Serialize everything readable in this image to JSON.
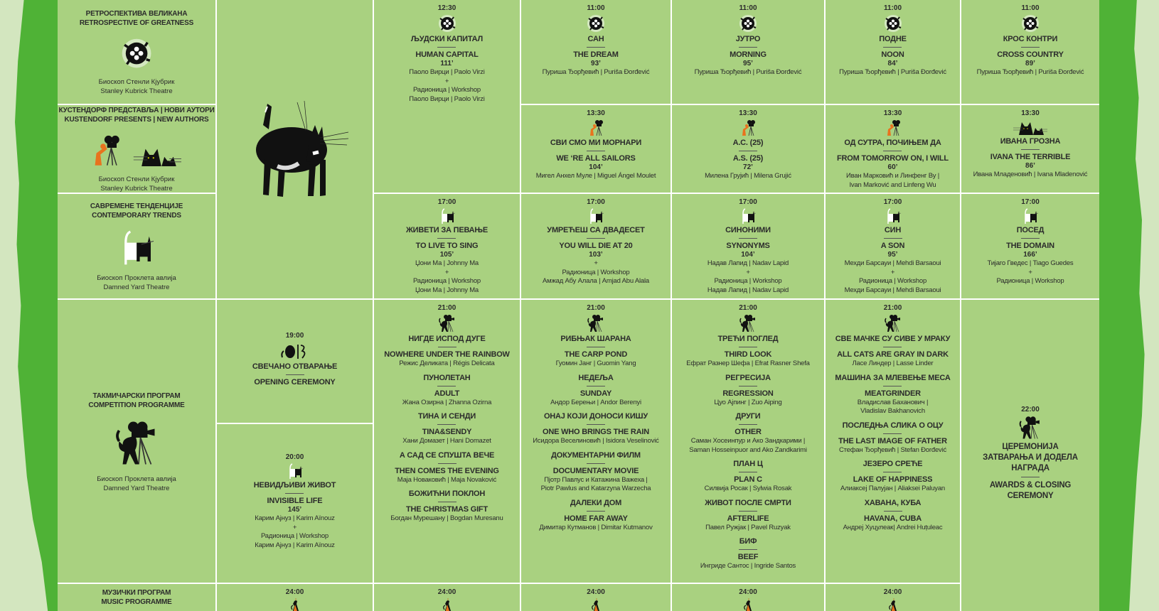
{
  "colors": {
    "cell": "#a9d180",
    "grid_lines": "#ffffff",
    "stripe": "#4fb236",
    "paper": "#d3e6bf",
    "accent_orange": "#e8731e"
  },
  "sections": [
    {
      "id": "retro",
      "title_sr": "РЕТРОСПЕКТИВА ВЕЛИКАНА",
      "title_en": "RETROSPECTIVE OF GREATNESS",
      "icon": "film-reel-icon",
      "venue_sr": "Биоскоп Стенли Кјубрик",
      "venue_en": "Stanley Kubrick Theatre"
    },
    {
      "id": "kustendorf",
      "title_sr": "КУСТЕНДОРФ ПРЕДСТАВЉА | НОВИ АУТОРИ",
      "title_en": "KUSTENDORF PRESENTS | NEW AUTHORS",
      "icon": "cameraman-and-cats-icon",
      "venue_sr": "Биоскоп Стенли Кјубрик",
      "venue_en": "Stanley Kubrick Theatre"
    },
    {
      "id": "contemporary",
      "title_sr": "САВРЕМЕНЕ ТЕНДЕНЦИЈЕ",
      "title_en": "CONTEMPORARY TRENDS",
      "icon": "black-white-cat-icon",
      "venue_sr": "Биоскоп Проклета авлија",
      "venue_en": "Damned Yard Theatre"
    },
    {
      "id": "competition",
      "title_sr": "ТАКМИЧАРСКИ ПРОГРАМ",
      "title_en": "COMPETITION PROGRAMME",
      "icon": "cat-with-camera-icon",
      "venue_sr": "Биоскоп Проклета авлија",
      "venue_en": "Damned Yard Theatre"
    },
    {
      "id": "music",
      "title_sr": "МУЗИЧКИ ПРОГРАМ",
      "title_en": "MUSIC PROGRAMME"
    }
  ],
  "poster_art": {
    "icon": "black-cat-illustration"
  },
  "events": [
    {
      "id": "c3r1",
      "time": "12:30",
      "icon": "film-reel-icon",
      "films": [
        {
          "sr": "ЉУДСКИ КАПИТАЛ",
          "en": "HUMAN CAPITAL",
          "dur": "111’",
          "lines": [
            "Паоло Вирци | Paolo Virzi",
            "+",
            "Радионица | Workshop",
            "Паоло Вирци | Paolo Virzi"
          ]
        }
      ]
    },
    {
      "id": "c4r1",
      "time": "11:00",
      "icon": "film-reel-icon",
      "films": [
        {
          "sr": "САН",
          "en": "THE DREAM",
          "dur": "93’",
          "lines": [
            "Пуриша Ђорђевић | Puriša Đorđević"
          ]
        }
      ]
    },
    {
      "id": "c5r1",
      "time": "11:00",
      "icon": "film-reel-icon",
      "films": [
        {
          "sr": "ЈУТРО",
          "en": "MORNING",
          "dur": "95’",
          "lines": [
            "Пуриша Ђорђевић | Puriša Đorđević"
          ]
        }
      ]
    },
    {
      "id": "c6r1",
      "time": "11:00",
      "icon": "film-reel-icon",
      "films": [
        {
          "sr": "ПОДНЕ",
          "en": "NOON",
          "dur": "84’",
          "lines": [
            "Пуриша Ђорђевић | Puriša Đorđević"
          ]
        }
      ]
    },
    {
      "id": "c7r1",
      "time": "11:00",
      "icon": "film-reel-icon",
      "films": [
        {
          "sr": "КРОС КОНТРИ",
          "en": "CROSS COUNTRY",
          "dur": "89’",
          "lines": [
            "Пуриша Ђорђевић | Puriša Đorđević"
          ]
        }
      ]
    },
    {
      "id": "c4r2",
      "time": "13:30",
      "icon": "cameraman-icon",
      "films": [
        {
          "sr": "СВИ СМО МИ МОРНАРИ",
          "en": "WE ‘RE ALL SAILORS",
          "dur": "104’",
          "lines": [
            "Мигел Анхел Муле | Miguel Ángel Moulet"
          ]
        }
      ]
    },
    {
      "id": "c5r2",
      "time": "13:30",
      "icon": "cameraman-icon",
      "films": [
        {
          "sr": "А.С. (25)",
          "en": "A.S. (25)",
          "dur": "72’",
          "lines": [
            "Милена Грујић | Milena Grujić"
          ]
        }
      ]
    },
    {
      "id": "c6r2",
      "time": "13:30",
      "icon": "cameraman-icon",
      "films": [
        {
          "sr": "ОД СУТРА, ПОЧИЊЕМ ДА",
          "en": "FROM TOMORROW ON, I WILL",
          "dur": "60’",
          "lines": [
            "Иван Марковић и Линфенг Ву |",
            "Ivan Marković and Linfeng Wu"
          ]
        }
      ]
    },
    {
      "id": "c7r2",
      "time": "13:30",
      "icon": "two-black-cats-icon",
      "films": [
        {
          "sr": "ИВАНА ГРОЗНА",
          "en": "IVANA THE TERRIBLE",
          "dur": "86’",
          "lines": [
            "Ивана Младеновић | Ivana Mladenović"
          ]
        }
      ]
    },
    {
      "id": "c3r3",
      "time": "17:00",
      "icon": "black-white-cat-icon",
      "films": [
        {
          "sr": "ЖИВЕТИ ЗА ПЕВАЊЕ",
          "en": "TO LIVE TO SING",
          "dur": "105’",
          "lines": [
            "Џони Ма | Johnny Ma",
            "+",
            "Радионица | Workshop",
            "Џони Ма | Johnny Ma"
          ]
        }
      ]
    },
    {
      "id": "c4r3",
      "time": "17:00",
      "icon": "black-white-cat-icon",
      "films": [
        {
          "sr": "УМРЕЋЕШ СА ДВАДЕСЕТ",
          "en": "YOU WILL DIE AT 20",
          "dur": "103’",
          "lines": [
            "+",
            "Радионица | Workshop",
            "Амжад Абу Алала | Amjad Abu Alala"
          ]
        }
      ]
    },
    {
      "id": "c5r3",
      "time": "17:00",
      "icon": "black-white-cat-icon",
      "films": [
        {
          "sr": "СИНОНИМИ",
          "en": "SYNONYMS",
          "dur": "104’",
          "lines": [
            "Надав Лапид | Nadav Lapid",
            "+",
            "Радионица | Workshop",
            "Надав Лапид | Nadav Lapid"
          ]
        }
      ]
    },
    {
      "id": "c6r3",
      "time": "17:00",
      "icon": "black-white-cat-icon",
      "films": [
        {
          "sr": "СИН",
          "en": "A SON",
          "dur": "95’",
          "lines": [
            "Мехди Барсауи | Mehdi Barsaoui",
            "+",
            "Радионица | Workshop",
            "Мехди Барсауи | Mehdi Barsaoui"
          ]
        }
      ]
    },
    {
      "id": "c7r3",
      "time": "17:00",
      "icon": "black-white-cat-icon",
      "films": [
        {
          "sr": "ПОСЕД",
          "en": "THE DOMAIN",
          "dur": "166’",
          "lines": [
            "Тијаго Гведес | Tiago Guedes",
            "+",
            "Радионица | Workshop"
          ]
        }
      ]
    },
    {
      "id": "c2open",
      "time": "19:00",
      "icon": "festival-logo-icon",
      "films": [
        {
          "sr": "СВЕЧАНО ОТВАРАЊЕ",
          "en": "OPENING CEREMONY",
          "lines": []
        }
      ]
    },
    {
      "id": "c2inv",
      "time": "20:00",
      "icon": "black-white-cat-icon",
      "films": [
        {
          "sr": "НЕВИДЉИВИ ЖИВОТ",
          "en": "INVISIBLE LIFE",
          "dur": "145’",
          "lines": [
            "Карим Ајнуз | Karim Aïnouz",
            "+",
            "Радионица | Workshop",
            "Карим Ајнуз | Karim Aïnouz"
          ]
        }
      ]
    },
    {
      "id": "c3r4",
      "time": "21:00",
      "icon": "cat-with-camera-icon",
      "films": [
        {
          "sr": "НИГДЕ ИСПОД ДУГЕ",
          "en": "NOWHERE UNDER THE RAINBOW",
          "lines": [
            "Режис Деликата | Régis Delicata"
          ]
        },
        {
          "sr": "ПУНОЛЕТАН",
          "en": "ADULT",
          "lines": [
            "Жана Озирна | Zhanna Ozirna"
          ]
        },
        {
          "sr": "ТИНА И СЕНДИ",
          "en": "TINA&SENDY",
          "lines": [
            "Хани Домазет | Hani Domazet"
          ]
        },
        {
          "sr": "А САД СЕ СПУШТА ВЕЧЕ",
          "en": "THEN COMES THE EVENING",
          "lines": [
            "Маја Новаковић | Maja Novaković"
          ]
        },
        {
          "sr": "БОЖИЋНИ ПОКЛОН",
          "en": "THE CHRISTMAS GIFT",
          "lines": [
            "Богдан Мурешану | Bogdan Muresanu"
          ]
        }
      ]
    },
    {
      "id": "c4r4",
      "time": "21:00",
      "icon": "cat-with-camera-icon",
      "films": [
        {
          "sr": "РИБЊАК ШАРАНА",
          "en": "THE CARP POND",
          "lines": [
            "Гуомин Јанг | Guomin Yang"
          ]
        },
        {
          "sr": "НЕДЕЉА",
          "en": "SUNDAY",
          "lines": [
            "Андор Берењи | Andor Berenyi"
          ]
        },
        {
          "sr": "ОНАЈ КОЈИ ДОНОСИ КИШУ",
          "en": "ONE WHO BRINGS THE RAIN",
          "lines": [
            "Исидора Веселиновић | Isidora Veselinović"
          ]
        },
        {
          "sr": "ДОКУМЕНТАРНИ ФИЛМ",
          "en": "DOCUMENTARY MOVIE",
          "lines": [
            "Пјотр Павлус и Катажина Важеха |",
            "Piotr Pawlus and Katarzyna Warzecha"
          ]
        },
        {
          "sr": "ДАЛЕКИ ДОМ",
          "en": "HOME FAR AWAY",
          "lines": [
            "Димитар Кутманов | Dimitar Kutmanov"
          ]
        }
      ]
    },
    {
      "id": "c5r4",
      "time": "21:00",
      "icon": "cat-with-camera-icon",
      "films": [
        {
          "sr": "ТРЕЋИ ПОГЛЕД",
          "en": "THIRD LOOK",
          "lines": [
            "Ефрат Разнер Шефа | Efrat Rasner Shefa"
          ]
        },
        {
          "sr": "РЕГРЕСИЈА",
          "en": "REGRESSION",
          "lines": [
            "Цуо Ајпинг | Zuo Aiping"
          ]
        },
        {
          "sr": "ДРУГИ",
          "en": "OTHER",
          "lines": [
            "Саман Хосеинпур и Ако Зандкарими |",
            "Saman Hosseinpuor and Ako Zandkarimi"
          ]
        },
        {
          "sr": "ПЛАН Ц",
          "en": "PLAN C",
          "lines": [
            "Силвија Росак | Sylwia Rosak"
          ]
        },
        {
          "sr": "ЖИВОТ ПОСЛЕ СМРТИ",
          "en": "AFTERLIFE",
          "lines": [
            "Павел Ружјак | Pavel Ruzyak"
          ]
        },
        {
          "sr": "БИФ",
          "en": "BEEF",
          "lines": [
            "Ингриде Сантос | Ingride Santos"
          ]
        }
      ]
    },
    {
      "id": "c6r4",
      "time": "21:00",
      "icon": "cat-with-camera-icon",
      "films": [
        {
          "sr": "СВЕ МАЧКЕ СУ СИВЕ У МРАКУ",
          "en": "ALL CATS ARE GRAY IN DARK",
          "lines": [
            "Ласе Линдер | Lasse Linder"
          ]
        },
        {
          "sr": "МАШИНА ЗА МЛЕВЕЊЕ МЕСА",
          "en": "MEATGRINDER",
          "lines": [
            "Владислав Баханович |",
            "Vladislav Bakhanovich"
          ]
        },
        {
          "sr": "ПОСЛЕДЊА СЛИКА О ОЦУ",
          "en": "THE LAST IMAGE OF FATHER",
          "lines": [
            "Стефан Ђорђевић | Stefan Đorđević"
          ]
        },
        {
          "sr": "ЈЕЗЕРО СРЕЋЕ",
          "en": "LAKE OF HAPPINESS",
          "lines": [
            "Алиаксеј Палујан | Aliaksei Paluyan"
          ]
        },
        {
          "sr": "ХАВАНА, КУБА",
          "en": "HAVANA, CUBA",
          "lines": [
            "Андреј Хуцулеак| Andrei Huțuleac"
          ]
        }
      ]
    },
    {
      "id": "c7close",
      "time": "22:00",
      "icon": "cat-with-camera-icon",
      "films": [
        {
          "sr": "ЦЕРЕМОНИЈА ЗАТВАРАЊА И ДОДЕЛА НАГРАДА",
          "en": "AWARDS & CLOSING CEREMONY",
          "lines": []
        }
      ]
    },
    {
      "id": "c2r5",
      "time": "24:00",
      "icon": "orange-cat-icon",
      "films": []
    },
    {
      "id": "c3r5",
      "time": "24:00",
      "icon": "orange-cat-icon",
      "films": []
    },
    {
      "id": "c4r5",
      "time": "24:00",
      "icon": "orange-cat-icon",
      "films": []
    },
    {
      "id": "c5r5",
      "time": "24:00",
      "icon": "orange-cat-icon",
      "films": []
    },
    {
      "id": "c6r5",
      "time": "24:00",
      "icon": "orange-cat-icon",
      "films": []
    }
  ]
}
